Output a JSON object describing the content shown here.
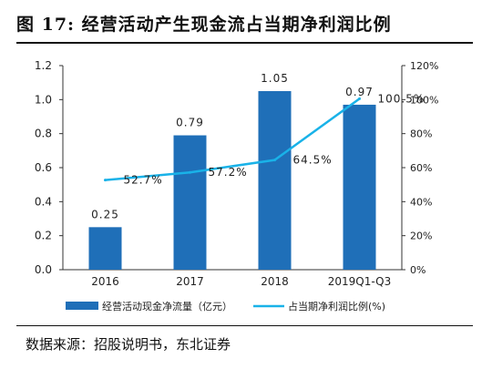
{
  "figure": {
    "title": "图 17: 经营活动产生现金流占当期净利润比例",
    "source": "数据来源：招股说明书，东北证券"
  },
  "colors": {
    "bar": "#1f6fb8",
    "line": "#19b2e8"
  },
  "chart_data": {
    "type": "bar",
    "categories": [
      "2016",
      "2017",
      "2018",
      "2019Q1-Q3"
    ],
    "series": [
      {
        "name": "经营活动现金净流量（亿元）",
        "type": "bar",
        "axis": "left",
        "values": [
          0.25,
          0.79,
          1.05,
          0.97
        ],
        "labels": [
          "0.25",
          "0.79",
          "1.05",
          "0.97"
        ]
      },
      {
        "name": "占当期净利润比例(%)",
        "type": "line",
        "axis": "right",
        "values": [
          52.7,
          57.2,
          64.5,
          100.5
        ],
        "labels": [
          "52.7%",
          "57.2%",
          "64.5%",
          "100.5%"
        ]
      }
    ],
    "y_left": {
      "range": [
        0,
        1.2
      ],
      "ticks": [
        "0.0",
        "0.2",
        "0.4",
        "0.6",
        "0.8",
        "1.0",
        "1.2"
      ]
    },
    "y_right": {
      "range": [
        0,
        120
      ],
      "ticks": [
        "0%",
        "20%",
        "40%",
        "60%",
        "80%",
        "100%",
        "120%"
      ]
    },
    "grid": false,
    "legend_position": "bottom"
  }
}
